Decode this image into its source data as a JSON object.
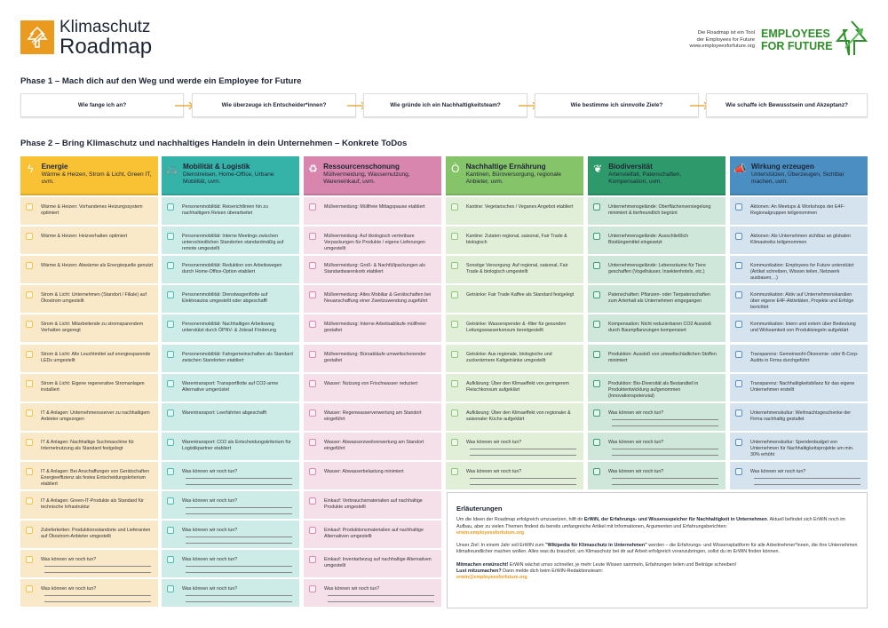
{
  "header": {
    "title_line1": "Klimaschutz",
    "title_line2": "Roadmap",
    "tagline": [
      "Die Roadmap ist ein Tool",
      "der Employees for Future",
      "www.employeesforfuture.org"
    ],
    "partner_line1": "EMPLOYEES",
    "partner_line2": "FOR FUTURE"
  },
  "phase1": {
    "title": "Phase 1 – Mach dich auf den Weg und werde ein Employee for Future",
    "steps": [
      "Wie fange ich an?",
      "Wie überzeuge ich Entscheider*innen?",
      "Wie gründe ich ein Nachhaltigkeitsteam?",
      "Wie bestimme ich sinnvolle Ziele?",
      "Wie schaffe ich Bewusstsein und Akzeptanz?"
    ],
    "arrow_color": "#ea9a1e"
  },
  "phase2": {
    "title": "Phase 2 – Bring Klimaschutz und nachhaltiges Handeln in dein Unternehmen – Konkrete ToDos",
    "columns": [
      {
        "id": "energie",
        "icon": "lightning-icon",
        "glyph": "ϟ",
        "title": "Energie",
        "subtitle": "Wärme & Heizen, Strom & Licht, Green IT, uvm.",
        "color": "#f9c235",
        "row_color": "#f9e9c9",
        "checkbox_color": "#f5c444",
        "text_color": "#1d2433",
        "items": [
          "Wärme & Heizen: Vorhandenes Heizungssystem optimiert",
          "Wärme & Heizen: Heizverhalten optimiert",
          "Wärme & Heizen: Abwärme als Energiequelle genutzt",
          "Strom & Licht: Unternehmen (Standort / Filiale) auf Ökostrom umgestellt",
          "Strom & Licht: Mitarbeitende zu stromsparendem Verhalten angeregt",
          "Strom & Licht: Alle Leuchtmittel auf energiesparende LEDs umgestellt",
          "Strom & Licht: Eigene regenerative Stromanlagen installiert",
          "IT & Anlagen: Unternehmensserver zu nachhaltigem Anbieter umgezogen",
          "IT & Anlagen: Nachhaltige Suchmaschine für Internetnutzung als Standard festgelegt",
          "IT & Anlagen: Bei Anschaffungen von Gerätschaften Energieeffizienz als festes Entscheidungskriterium etabliert",
          "IT & Anlagen: Green-IT-Produkte als Standard für technische Infrastruktur",
          "Zulieferketten: Produktionsstandorte und Lieferanten auf Ökostrom-Anbieter umgestellt",
          "Was können wir noch tun?",
          "Was können wir noch tun?"
        ]
      },
      {
        "id": "mobilitaet",
        "icon": "bicycle-icon",
        "glyph": "🚲",
        "title": "Mobilität & Logistik",
        "subtitle": "Dienstreisen, Home-Office, Urbane Mobilität, uvm.",
        "color": "#36b3a8",
        "row_color": "#cdece8",
        "checkbox_color": "#4dbdb2",
        "text_color": "#1d2433",
        "items": [
          "Personenmobilität: Reiserichtlinien hin zu nachhaltigem Reisen überarbeitet",
          "Personenmobilität: Interne Meetings zwischen unterschiedlichen Standorten standardmäßig auf remote umgestellt",
          "Personenmobilität: Reduktion von Arbeitswegen durch Home-Office-Option etabliert",
          "Personenmobilität: Dienstwagenflotte auf Elektroautos umgestellt oder abgeschafft",
          "Personenmobilität: Nachhaltigen Arbeitsweg unterstützt durch ÖPNV- & Jobrad Förderung",
          "Personenmobilität: Fahrgemeinschaften als Standard zwischen Standorten etabliert",
          "Warentransport: Transportflotte auf CO2-arme Alternative umgerüstet",
          "Warentransport: Leerfahrten abgeschafft",
          "Warentransport: CO2 als Entscheidungskriterium für Logistikpartner etabliert",
          "Was können wir noch tun?",
          "Was können wir noch tun?",
          "Was können wir noch tun?",
          "Was können wir noch tun?",
          "Was können wir noch tun?"
        ]
      },
      {
        "id": "ressourcen",
        "icon": "recycle-icon",
        "glyph": "♻",
        "title": "Ressourcenschonung",
        "subtitle": "Müllvermeidung, Wassernutzung, Wareneinkauf, uvm.",
        "color": "#d986ae",
        "row_color": "#f5e0ea",
        "checkbox_color": "#d98bb2",
        "text_color": "#1d2433",
        "items": [
          "Müllvermeidung: Müllfreie Mittagspause etabliert",
          "Müllvermeidung: Auf ökologisch vertretbare Verpackungen für Produkte / eigene Lieferungen umgestellt",
          "Müllvermeidung: Groß- & Nachfüllpackungen als Standardwarenkorb etabliert",
          "Müllvermeidung: Altes Mobiliar & Gerätschaften bei Neuanschaffung einer Zweitzuwendung zugeführt",
          "Müllvermeidung: Interne Arbeitsabläufe müllfreier gestaltet",
          "Müllvermeidung: Büroabläufe umweltschonender gestaltet",
          "Wasser: Nutzung von Frischwasser reduziert",
          "Wasser: Regenwasserverwertung am Standort eingeführt",
          "Wasser: Abwasserzweitverwertung am Standort eingeführt",
          "Wasser: Abwasserbelastung minimiert",
          "Einkauf: Verbrauchsmaterialien auf nachhaltige Produkte umgestellt",
          "Einkauf: Produktionsmaterialien auf nachhaltige Alternativen umgestellt",
          "Einkauf: Inventarbezug auf nachhaltige Alternativen umgestellt",
          "Was können wir noch tun?"
        ]
      },
      {
        "id": "ernaehrung",
        "icon": "apple-icon",
        "glyph": "Ò",
        "title": "Nachhaltige Ernährung",
        "subtitle": "Kantinen, Büroversorgung, regionale Anbieter, uvm.",
        "color": "#86c46a",
        "row_color": "#e1efd8",
        "checkbox_color": "#8cc872",
        "text_color": "#1d2433",
        "items": [
          "Kantine: Vegetarisches / Veganes Angebot etabliert",
          "Kantine: Zutaten regional, saisonal, Fair Trade & biologisch",
          "Sonstige Versorgung: Auf regional, saisonal, Fair Trade & biologisch umgestellt",
          "Getränke: Fair Trade Kaffee als Standard festgelegt",
          "Getränke: Wasserspender & -filter für gesunden Leitungswasserkonsum bereitgestellt",
          "Getränke: Aus regionale, biologische und zuckerärmere Kaltgetränke umgestellt",
          "Aufklärung: Über den Klimaeffekt von geringerem Fleischkonsum aufgeklärt",
          "Aufklärung: Über den Klimaeffekt von regionaler & saisonaler Küche aufgeklärt",
          "Was können wir noch tun?",
          "Was können wir noch tun?"
        ]
      },
      {
        "id": "biodiversitaet",
        "icon": "leaf-icon",
        "glyph": "❦",
        "title": "Biodiversität",
        "subtitle": "Artenvielfalt, Patenschaften, Kompensation, uvm.",
        "color": "#2e9a6c",
        "row_color": "#cfe6da",
        "checkbox_color": "#3a9d74",
        "text_color": "#1d2433",
        "items": [
          "Unternehmensgelände: Oberflächenversiegelung minimiert & tierfreundlich begrünt",
          "Unternehmensgelände: Ausschließlich Biodüngemittel eingesetzt",
          "Unternehmensgelände: Lebensräume für Tiere geschaffen (Vogelhäuser, Insektenhotels, etc.)",
          "Patenschaften: Pflanzen- oder Tierpatenschaften zum Arterhalt als Unternehmen eingegangen",
          "Kompensation: Nicht reduzierbaren CO2 Ausstoß durch Baumpflanzungen kompensiert",
          "Produktion: Ausstoß von umweltschädlichen Stoffen minimiert",
          "Produktion: Bio-Diversität als Bestandteil in Produktentwicklung aufgenommen (Innovationspotenzial)",
          "Was können wir noch tun?",
          "Was können wir noch tun?",
          "Was können wir noch tun?"
        ]
      },
      {
        "id": "wirkung",
        "icon": "megaphone-icon",
        "glyph": "📣",
        "title": "Wirkung erzeugen",
        "subtitle": "Unterstützen, Überzeugen, Sichtbar machen, uvm.",
        "color": "#4a8ec2",
        "row_color": "#d4e3ee",
        "checkbox_color": "#5a8fc0",
        "text_color": "#1d2433",
        "items": [
          "Aktionen: An Meetups & Workshops der E4F-Regionalgruppen teilgenommen",
          "Aktionen: Als Unternehmen sichtbar an globalen Klimastreiks teilgenommen",
          "Kommunikation: Employees for Future unterstützt (Artikel schreiben, Wissen teilen, Netzwerk ausbauen, ..)",
          "Kommunikation: Aktiv auf Unternehmenskanälen über eigene E4F-Aktivitäten, Projekte und Erfolge berichtet",
          "Kommunikation: Intern und extern über Bedeutung und Wirksamkeit von Produktsiegeln aufgeklärt",
          "Transparenz: Gemeinwohl-Ökonomie- oder B-Corp-Audits in Firma durchgeführt",
          "Transparenz: Nachhaltigkeitsbilanz für das eigene Unternehmen erstellt",
          "Unternehmenskultur: Weihnachtsgeschenke der Firma nachhaltig gestaltet",
          "Unternehmenskultur: Spendenbudget von Unternehmen für Nachhaltigkeitsprojekte um min. 30% erhöht",
          "Was können wir noch tun?"
        ]
      }
    ]
  },
  "explanations": {
    "title": "Erläuterungen",
    "p1_a": "Um die Ideen der Roadmap erfolgreich umzusetzen, hilft dir ",
    "p1_b": "ErWiN, der Erfahrungs- und Wissensspeicher für Nachhaltigkeit in Unternehmen",
    "p1_c": ". Aktuell befindet sich ErWiN noch im Aufbau, aber zu vielen Themen findest du bereits umfangreiche Artikel mit Informationen, Argumenten und Erfahrungsberichten:",
    "link1": "erwin.employeesforfuture.org",
    "p2_a": "Unser Ziel: In einem Jahr soll ErWiN zum ",
    "p2_b": "\"Wikipedia für Klimaschutz in Unternehmen\"",
    "p2_c": " werden – die Erfahrungs- und Wissensplattform für alle Arbeitnehmer*innen, die ihre Unternehmen klimafreundlicher machen wollen. Alles was du brauchst, um Klimaschutz bei dir auf Arbeit erfolgreich voranzubringen, sollst du im ErWiN finden können.",
    "p3_a": "Mitmachen erwünscht!",
    "p3_b": " ErWiN wächst umso schneller, je mehr Leute Wissen sammeln, Erfahrungen teilen und Beiträge schreiben!",
    "p4_a": "Lust mitzumachen?",
    "p4_b": " Dann melde dich beim ErWiN-Redaktionsteam:",
    "link2": "erwin@employeesforfuture.org"
  }
}
